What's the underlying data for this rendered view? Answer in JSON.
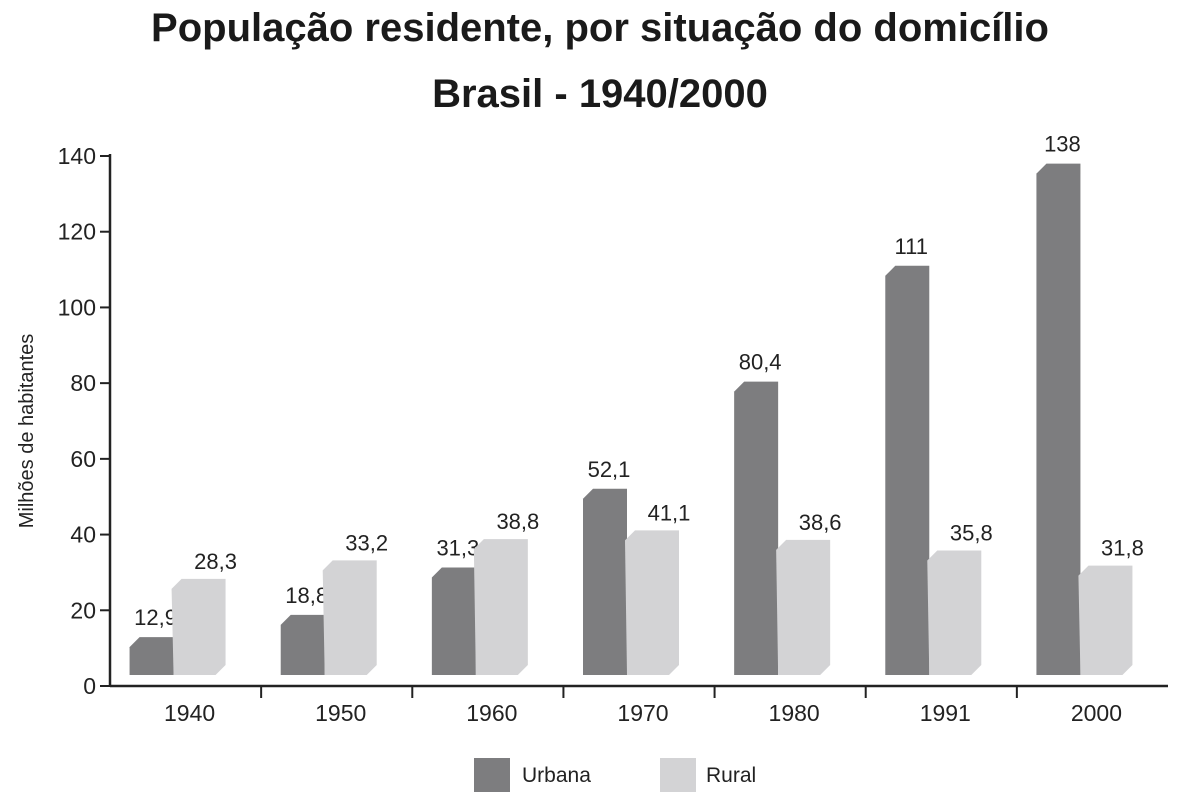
{
  "chart_data": {
    "type": "bar",
    "title": "População residente, por situação do domicílio",
    "subtitle": "Brasil - 1940/2000",
    "xlabel": "",
    "ylabel": "Milhões de habitantes",
    "ylim": [
      0,
      140
    ],
    "yticks": [
      0,
      20,
      40,
      60,
      80,
      100,
      120,
      140
    ],
    "categories": [
      "1940",
      "1950",
      "1960",
      "1970",
      "1980",
      "1991",
      "2000"
    ],
    "series": [
      {
        "name": "Urbana",
        "values": [
          12.9,
          18.8,
          31.3,
          52.1,
          80.4,
          111,
          138
        ],
        "labels": [
          "12,9",
          "18,8",
          "31,3",
          "52,1",
          "80,4",
          "111",
          "138"
        ],
        "color": "#7d7d7f"
      },
      {
        "name": "Rural",
        "values": [
          28.3,
          33.2,
          38.8,
          41.1,
          38.6,
          35.8,
          31.8
        ],
        "labels": [
          "28,3",
          "33,2",
          "38,8",
          "41,1",
          "38,6",
          "35,8",
          "31,8"
        ],
        "color": "#d3d3d5"
      }
    ],
    "legend_position": "bottom",
    "grid": false
  }
}
